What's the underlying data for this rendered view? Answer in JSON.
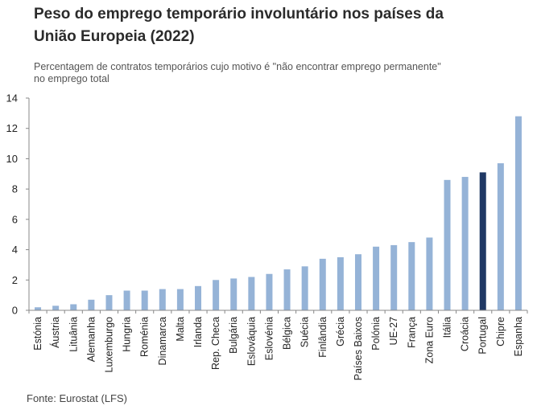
{
  "title_line1": "Peso do emprego temporário involuntário nos países da",
  "title_line2": "União Europeia (2022)",
  "subtitle_line1": "Percentagem de contratos temporários cujo motivo é \"não encontrar emprego permanente\"",
  "subtitle_line2": "no emprego total",
  "source": "Fonte: Eurostat (LFS)",
  "colors": {
    "bar": "#95b3d7",
    "highlight": "#1f3864",
    "axis": "#888888",
    "grid": "#bbbbbb"
  },
  "chart_data": {
    "type": "bar",
    "title": "Peso do emprego temporário involuntário nos países da União Europeia (2022)",
    "xlabel": "",
    "ylabel": "",
    "ylim": [
      0,
      14
    ],
    "yticks": [
      0,
      2,
      4,
      6,
      8,
      10,
      12,
      14
    ],
    "grid": false,
    "highlight_category": "Portugal",
    "categories": [
      "Estónia",
      "Áustria",
      "Lituânia",
      "Alemanha",
      "Luxemburgo",
      "Hungria",
      "Roménia",
      "Dinamarca",
      "Malta",
      "Irlanda",
      "Rep. Checa",
      "Bulgária",
      "Eslováquia",
      "Eslovénia",
      "Bélgica",
      "Suécia",
      "Finlândia",
      "Grécia",
      "Países Baixos",
      "Polónia",
      "UE-27",
      "França",
      "Zona Euro",
      "Itália",
      "Croácia",
      "Portugal",
      "Chipre",
      "Espanha"
    ],
    "values": [
      0.2,
      0.3,
      0.4,
      0.7,
      1.0,
      1.3,
      1.3,
      1.4,
      1.4,
      1.6,
      2.0,
      2.1,
      2.2,
      2.4,
      2.7,
      2.9,
      3.4,
      3.5,
      3.7,
      4.2,
      4.3,
      4.5,
      4.8,
      8.6,
      8.8,
      9.1,
      9.7,
      12.8
    ]
  }
}
